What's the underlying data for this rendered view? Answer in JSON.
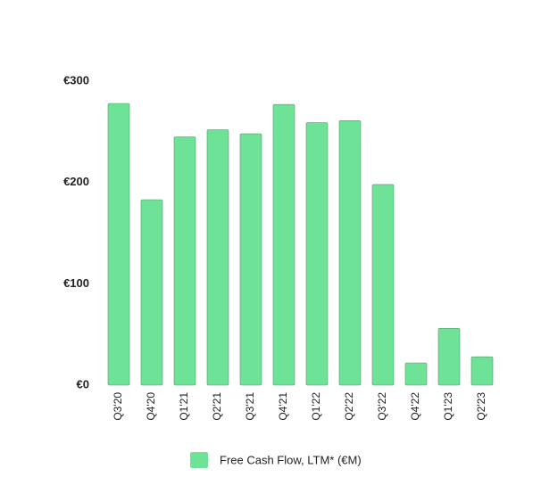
{
  "chart_data": {
    "type": "bar",
    "categories": [
      "Q3'20",
      "Q4'20",
      "Q1'21",
      "Q2'21",
      "Q3'21",
      "Q4'21",
      "Q1'22",
      "Q2'22",
      "Q3'22",
      "Q4'22",
      "Q1'23",
      "Q2'23"
    ],
    "series": [
      {
        "name": "Free Cash Flow, LTM* (€M)",
        "color": "#6ee296",
        "values": [
          278,
          183,
          245,
          252,
          248,
          277,
          259,
          261,
          198,
          22,
          56,
          28
        ]
      }
    ],
    "ylim": [
      0,
      300
    ],
    "yticks": [
      {
        "value": 0,
        "label": "€0"
      },
      {
        "value": 100,
        "label": "€100"
      },
      {
        "value": 200,
        "label": "€200"
      },
      {
        "value": 300,
        "label": "€300"
      }
    ],
    "grid": false,
    "legend": "bottom"
  }
}
